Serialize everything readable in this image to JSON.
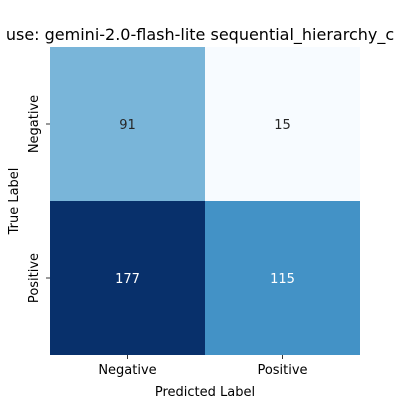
{
  "chart_data": {
    "type": "heatmap",
    "title": "use: gemini-2.0-flash-lite sequential_hierarchy_c",
    "xlabel": "Predicted Label",
    "ylabel": "True Label",
    "x_categories": [
      "Negative",
      "Positive"
    ],
    "y_categories": [
      "Negative",
      "Positive"
    ],
    "values": [
      [
        91,
        15
      ],
      [
        177,
        115
      ]
    ],
    "value_labels": [
      [
        "91",
        "15"
      ],
      [
        "177",
        "115"
      ]
    ],
    "cell_colors": [
      [
        "#79b5d9",
        "#f7fbff"
      ],
      [
        "#08306b",
        "#4392c6"
      ]
    ],
    "cell_text_colors": [
      [
        "#262626",
        "#262626"
      ],
      [
        "#ffffff",
        "#ffffff"
      ]
    ],
    "colormap": "Blues",
    "colorbar": false
  }
}
